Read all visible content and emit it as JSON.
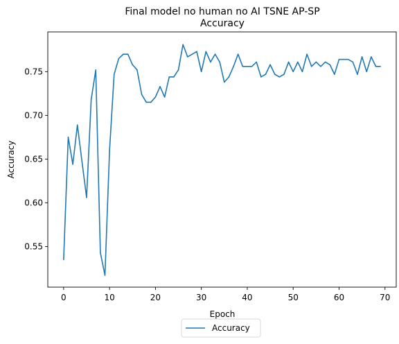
{
  "chart_data": {
    "type": "line",
    "title": "Final model no human no AI TSNE AP-SP\nAccuracy",
    "xlabel": "Epoch",
    "ylabel": "Accuracy",
    "xlim": [
      -3.45,
      72.45
    ],
    "ylim": [
      0.5035,
      0.7955
    ],
    "xticks": [
      0,
      10,
      20,
      30,
      40,
      50,
      60,
      70
    ],
    "yticks": [
      0.55,
      0.6,
      0.65,
      0.7,
      0.75
    ],
    "ytick_labels": [
      "0.55",
      "0.60",
      "0.65",
      "0.70",
      "0.75"
    ],
    "grid": false,
    "legend_position": "below",
    "series": [
      {
        "name": "Accuracy",
        "color": "#1f77b4",
        "x": [
          0,
          1,
          2,
          3,
          4,
          5,
          6,
          7,
          8,
          9,
          10,
          11,
          12,
          13,
          14,
          15,
          16,
          17,
          18,
          19,
          20,
          21,
          22,
          23,
          24,
          25,
          26,
          27,
          28,
          29,
          30,
          31,
          32,
          33,
          34,
          35,
          36,
          37,
          38,
          39,
          40,
          41,
          42,
          43,
          44,
          45,
          46,
          47,
          48,
          49,
          50,
          51,
          52,
          53,
          54,
          55,
          56,
          57,
          58,
          59,
          60,
          61,
          62,
          63,
          64,
          65,
          66,
          67,
          68,
          69
        ],
        "values": [
          0.535,
          0.675,
          0.644,
          0.689,
          0.647,
          0.606,
          0.718,
          0.752,
          0.543,
          0.517,
          0.66,
          0.747,
          0.765,
          0.77,
          0.77,
          0.758,
          0.752,
          0.724,
          0.715,
          0.715,
          0.721,
          0.733,
          0.721,
          0.744,
          0.744,
          0.752,
          0.781,
          0.767,
          0.77,
          0.773,
          0.75,
          0.773,
          0.761,
          0.77,
          0.761,
          0.738,
          0.744,
          0.756,
          0.77,
          0.756,
          0.756,
          0.756,
          0.761,
          0.744,
          0.747,
          0.758,
          0.747,
          0.744,
          0.747,
          0.761,
          0.75,
          0.761,
          0.75,
          0.77,
          0.756,
          0.761,
          0.756,
          0.761,
          0.758,
          0.747,
          0.764,
          0.764,
          0.764,
          0.761,
          0.747,
          0.767,
          0.75,
          0.767,
          0.756,
          0.756
        ]
      }
    ]
  }
}
